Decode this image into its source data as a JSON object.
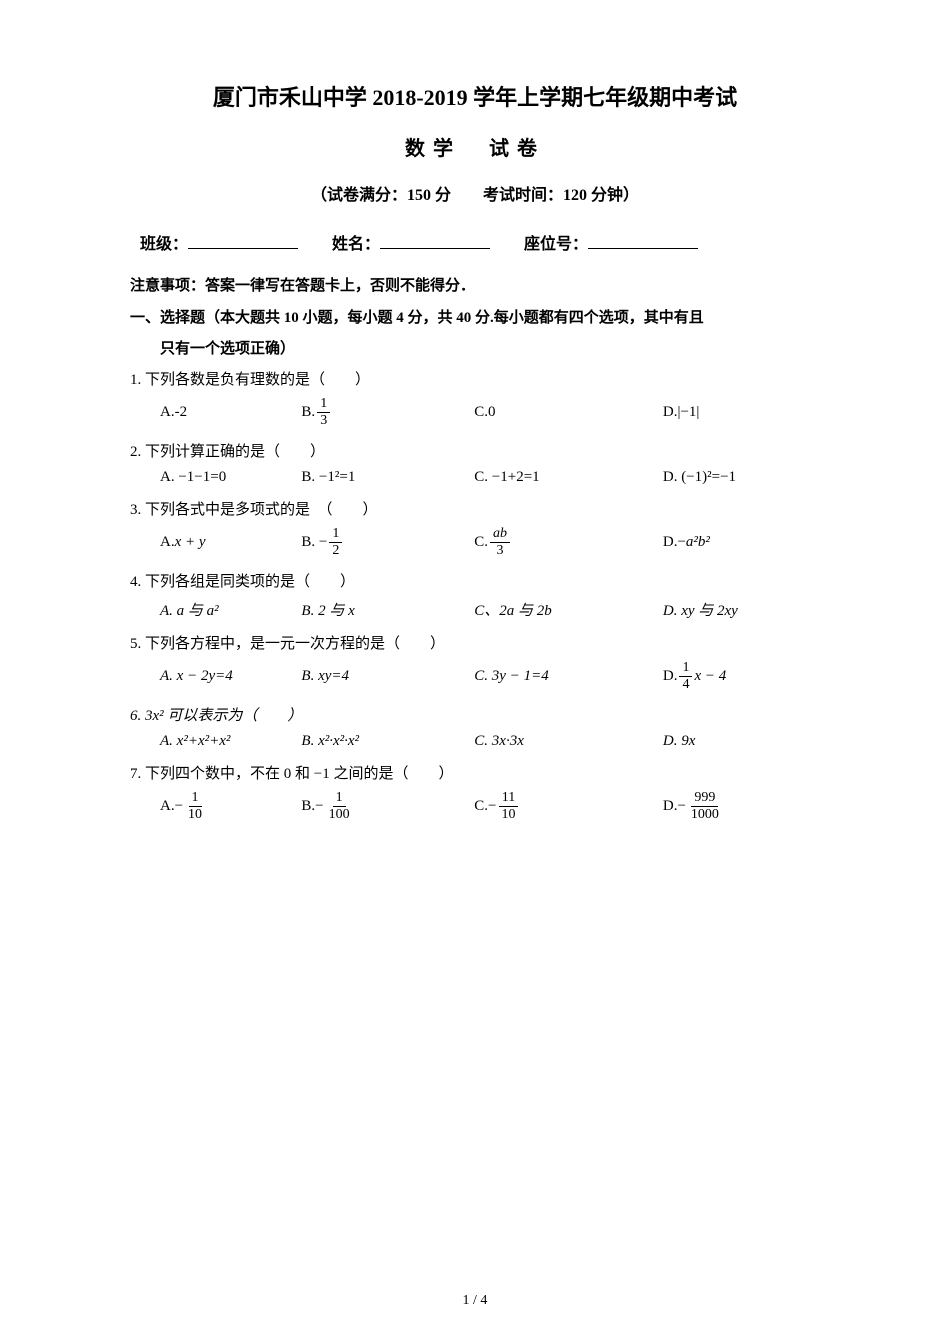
{
  "header": {
    "main_title": "厦门市禾山中学 2018-2019 学年上学期七年级期中考试",
    "sub_title": "数学　试卷",
    "exam_info": "（试卷满分：150 分　　考试时间：120 分钟）",
    "class_label": "班级：",
    "name_label": "姓名：",
    "seat_label": "座位号："
  },
  "notice": "注意事项：答案一律写在答题卡上，否则不能得分．",
  "section1": {
    "line1": "一、选择题（本大题共 10 小题，每小题 4 分，共 40 分.每小题都有四个选项，其中有且",
    "line2": "只有一个选项正确）"
  },
  "q1": {
    "text": "1. 下列各数是负有理数的是（　　）",
    "a": "A.-2",
    "b_prefix": "B.",
    "b_num": "1",
    "b_den": "3",
    "c": "C.0",
    "d": "D.|−1|"
  },
  "q2": {
    "text": "2. 下列计算正确的是（　　）",
    "a": "A. −1−1=0",
    "b": "B. −1²=1",
    "c": "C. −1+2=1",
    "d": "D. (−1)²=−1"
  },
  "q3": {
    "text": "3. 下列各式中是多项式的是　（　　）",
    "a_prefix": "A. ",
    "a_expr": "x + y",
    "b_prefix": "B. −",
    "b_num": "1",
    "b_den": "2",
    "c_prefix": "C.",
    "c_num": "ab",
    "c_den": "3",
    "d_prefix": "D.−",
    "d_expr": "a²b²"
  },
  "q4": {
    "text": "4. 下列各组是同类项的是（　　）",
    "a": "A. a 与 a²",
    "b": "B. 2 与 x",
    "c": "C、2a 与 2b",
    "d": "D. xy 与 2xy"
  },
  "q5": {
    "text": "5. 下列各方程中，是一元一次方程的是（　　）",
    "a": "A. x − 2y=4",
    "b": "B. xy=4",
    "c": "C. 3y − 1=4",
    "d_prefix": "D. ",
    "d_num": "1",
    "d_den": "4",
    "d_suffix": "x − 4"
  },
  "q6": {
    "text": "6. 3x² 可以表示为（　　）",
    "a": "A. x²+x²+x²",
    "b": "B. x²·x²·x²",
    "c": "C. 3x·3x",
    "d": "D. 9x"
  },
  "q7": {
    "text": "7. 下列四个数中，不在 0 和 −1 之间的是（　　）",
    "a_prefix": "A.−",
    "a_num": "1",
    "a_den": "10",
    "b_prefix": "B.−",
    "b_num": "1",
    "b_den": "100",
    "c_prefix": "C.−",
    "c_num": "11",
    "c_den": "10",
    "d_prefix": "D.−",
    "d_num": "999",
    "d_den": "1000"
  },
  "page_number": "1 / 4"
}
